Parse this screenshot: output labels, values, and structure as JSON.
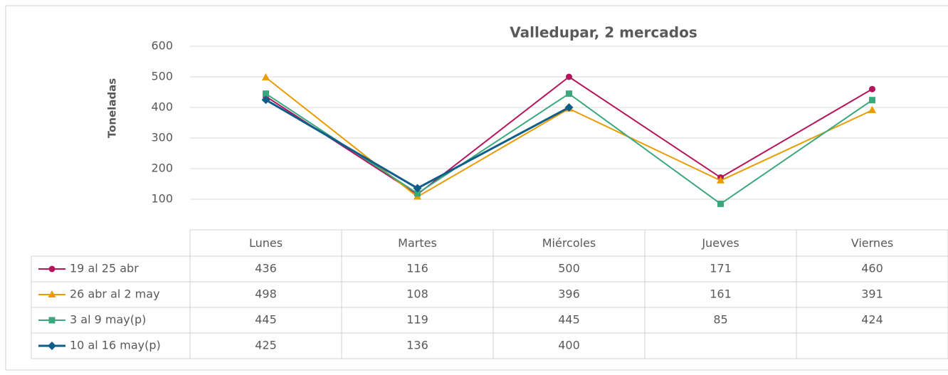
{
  "chart_data": {
    "type": "line",
    "title": "Valledupar, 2 mercados",
    "y_label": "Toneladas",
    "categories": [
      "Lunes",
      "Martes",
      "Miércoles",
      "Jueves",
      "Viernes"
    ],
    "series": [
      {
        "name": "19 al 25 abr",
        "color": "#b5135b",
        "marker": "circle",
        "line_width": 2,
        "values": [
          436,
          116,
          500,
          171,
          460
        ]
      },
      {
        "name": "26 abr al 2 may",
        "color": "#e89c00",
        "marker": "triangle",
        "line_width": 2,
        "values": [
          498,
          108,
          396,
          161,
          391
        ]
      },
      {
        "name": "3 al 9 may(p)",
        "color": "#3aa87c",
        "marker": "square",
        "line_width": 2,
        "values": [
          445,
          119,
          445,
          85,
          424
        ]
      },
      {
        "name": "10 al 16 may(p)",
        "color": "#0f5e8a",
        "marker": "diamond",
        "line_width": 3,
        "values": [
          425,
          136,
          400,
          null,
          null
        ]
      }
    ],
    "ylim": [
      0,
      600
    ],
    "yticks": [
      100,
      200,
      300,
      400,
      500,
      600
    ],
    "grid": true,
    "data_table": true
  }
}
